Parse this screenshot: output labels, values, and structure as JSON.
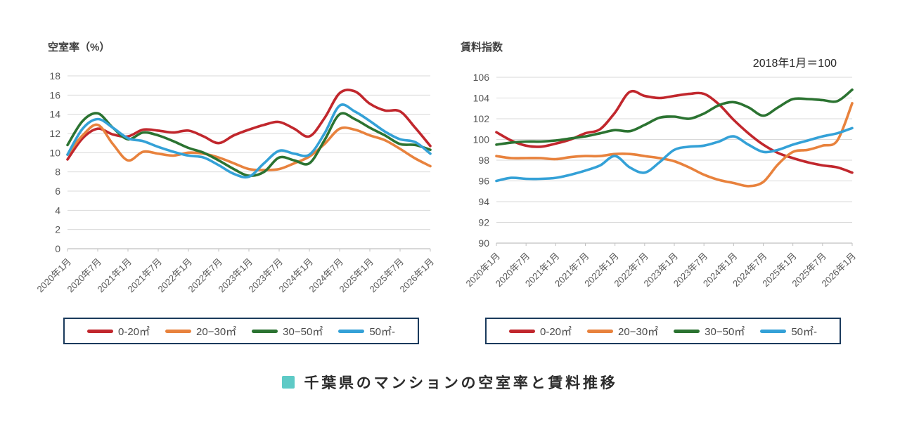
{
  "colors": {
    "red": "#c1272d",
    "orange": "#e8823d",
    "green": "#2b7331",
    "blue": "#34a1d7",
    "grid": "#d9d9d9",
    "axis": "#c0c0c0",
    "tick_text": "#595959",
    "title_text": "#3f3f3f",
    "legend_border": "#1a3a5c",
    "footer_square": "#5ecac6",
    "caption_text": "#2b2b2b"
  },
  "footer": {
    "title": "千葉県のマンションの空室率と賃料推移"
  },
  "chart_data": [
    {
      "type": "line",
      "title": "空室率（%）",
      "annotation": "",
      "xlabel": "",
      "ylabel": "空室率（%）",
      "ylim": [
        0,
        18
      ],
      "y_step": 2,
      "grid": true,
      "legend_position": "bottom",
      "y_tick_labels": [
        "18",
        "16",
        "14",
        "12",
        "10",
        "8",
        "6",
        "4",
        "2",
        "0"
      ],
      "x_tick_labels": [
        "2020年1月",
        "2020年7月",
        "2021年1月",
        "2021年7月",
        "2022年1月",
        "2022年7月",
        "2023年1月",
        "2023年7月",
        "2024年1月",
        "2024年7月",
        "2025年1月",
        "2025年7月",
        "2026年1月"
      ],
      "x_months": [
        0,
        3,
        6,
        9,
        12,
        15,
        18,
        21,
        24,
        27,
        30,
        33,
        36,
        39,
        42,
        45,
        48,
        51,
        54,
        57,
        60,
        63,
        66,
        69,
        72
      ],
      "series": [
        {
          "name": "0-20㎡",
          "color_key": "red",
          "values": [
            9.3,
            11.5,
            12.5,
            11.9,
            11.7,
            12.4,
            12.3,
            12.1,
            12.3,
            11.7,
            11.0,
            11.8,
            12.4,
            12.9,
            13.2,
            12.5,
            11.7,
            13.6,
            16.2,
            16.4,
            15.1,
            14.4,
            14.3,
            12.6,
            10.7
          ]
        },
        {
          "name": "20−30㎡",
          "color_key": "orange",
          "values": [
            9.8,
            11.8,
            12.9,
            10.9,
            9.2,
            10.1,
            9.9,
            9.7,
            10.0,
            9.9,
            9.5,
            8.9,
            8.3,
            8.2,
            8.3,
            8.9,
            9.6,
            10.9,
            12.5,
            12.4,
            11.8,
            11.3,
            10.4,
            9.4,
            8.6
          ]
        },
        {
          "name": "30−50㎡",
          "color_key": "green",
          "values": [
            10.8,
            13.3,
            14.1,
            12.6,
            11.4,
            12.1,
            11.8,
            11.2,
            10.5,
            10.0,
            9.2,
            8.3,
            7.6,
            8.0,
            9.5,
            9.2,
            8.9,
            11.3,
            14.0,
            13.5,
            12.6,
            11.8,
            10.9,
            10.8,
            10.3
          ]
        },
        {
          "name": "50㎡-",
          "color_key": "blue",
          "values": [
            9.8,
            12.5,
            13.5,
            12.6,
            11.5,
            11.2,
            10.6,
            10.1,
            9.7,
            9.5,
            8.7,
            7.8,
            7.5,
            8.9,
            10.2,
            9.9,
            9.8,
            12.0,
            14.9,
            14.3,
            13.3,
            12.2,
            11.4,
            11.1,
            9.9
          ]
        }
      ]
    },
    {
      "type": "line",
      "title": "賃料指数",
      "annotation": "2018年1月＝100",
      "xlabel": "",
      "ylabel": "賃料指数",
      "ylim": [
        90,
        106
      ],
      "y_step": 2,
      "grid": true,
      "legend_position": "bottom",
      "y_tick_labels": [
        "106",
        "104",
        "102",
        "100",
        "98",
        "96",
        "94",
        "92",
        "90"
      ],
      "x_tick_labels": [
        "2020年1月",
        "2020年7月",
        "2021年1月",
        "2021年7月",
        "2022年1月",
        "2022年7月",
        "2023年1月",
        "2023年7月",
        "2024年1月",
        "2024年7月",
        "2025年1月",
        "2025年7月",
        "2026年1月"
      ],
      "x_months": [
        0,
        3,
        6,
        9,
        12,
        15,
        18,
        21,
        24,
        27,
        30,
        33,
        36,
        39,
        42,
        45,
        48,
        51,
        54,
        57,
        60,
        63,
        66,
        69,
        72
      ],
      "series": [
        {
          "name": "0-20㎡",
          "color_key": "red",
          "values": [
            100.7,
            99.9,
            99.4,
            99.3,
            99.6,
            100.0,
            100.6,
            101.0,
            102.6,
            104.6,
            104.2,
            104.0,
            104.2,
            104.4,
            104.4,
            103.4,
            101.9,
            100.6,
            99.5,
            98.7,
            98.2,
            97.8,
            97.5,
            97.3,
            96.8
          ]
        },
        {
          "name": "20−30㎡",
          "color_key": "orange",
          "values": [
            98.4,
            98.2,
            98.2,
            98.2,
            98.1,
            98.3,
            98.4,
            98.4,
            98.6,
            98.6,
            98.4,
            98.2,
            97.9,
            97.3,
            96.6,
            96.1,
            95.8,
            95.5,
            95.9,
            97.6,
            98.8,
            99.0,
            99.4,
            99.9,
            103.5
          ]
        },
        {
          "name": "30−50㎡",
          "color_key": "green",
          "values": [
            99.5,
            99.7,
            99.8,
            99.8,
            99.9,
            100.1,
            100.3,
            100.6,
            100.9,
            100.8,
            101.4,
            102.1,
            102.2,
            102.0,
            102.5,
            103.3,
            103.6,
            103.1,
            102.3,
            103.1,
            103.9,
            103.9,
            103.8,
            103.7,
            104.8
          ]
        },
        {
          "name": "50㎡-",
          "color_key": "blue",
          "values": [
            96.0,
            96.3,
            96.2,
            96.2,
            96.3,
            96.6,
            97.0,
            97.5,
            98.4,
            97.3,
            96.8,
            97.8,
            99.0,
            99.3,
            99.4,
            99.8,
            100.3,
            99.5,
            98.8,
            99.0,
            99.5,
            99.9,
            100.3,
            100.6,
            101.1
          ]
        }
      ]
    }
  ]
}
